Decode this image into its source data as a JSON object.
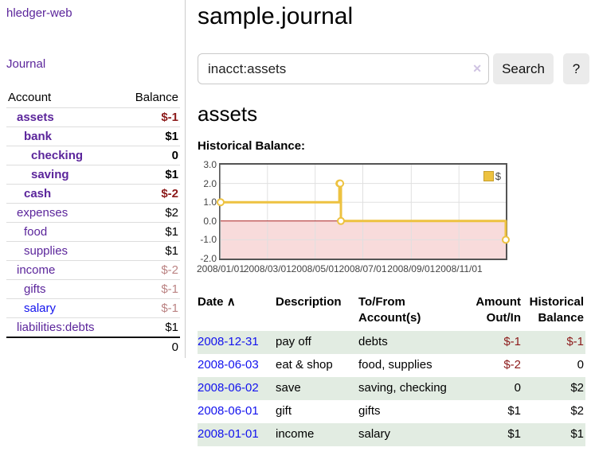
{
  "app": {
    "title": "hledger-web"
  },
  "sidebar": {
    "journal_link": "Journal",
    "accounts": {
      "headers": [
        "Account",
        "Balance"
      ],
      "rows": [
        {
          "name": "assets",
          "indent": 1,
          "bold": true,
          "link_color": "purple",
          "balance": "$-1",
          "balance_style": "neg-strong"
        },
        {
          "name": "bank",
          "indent": 2,
          "bold": true,
          "link_color": "purple",
          "balance": "$1",
          "balance_style": "normal"
        },
        {
          "name": "checking",
          "indent": 3,
          "bold": true,
          "link_color": "purple",
          "balance": "0",
          "balance_style": "normal"
        },
        {
          "name": "saving",
          "indent": 3,
          "bold": true,
          "link_color": "purple",
          "balance": "$1",
          "balance_style": "normal"
        },
        {
          "name": "cash",
          "indent": 2,
          "bold": true,
          "link_color": "purple",
          "balance": "$-2",
          "balance_style": "neg-strong"
        },
        {
          "name": "expenses",
          "indent": 1,
          "bold": false,
          "link_color": "purple",
          "balance": "$2",
          "balance_style": "normal"
        },
        {
          "name": "food",
          "indent": 2,
          "bold": false,
          "link_color": "purple",
          "balance": "$1",
          "balance_style": "normal"
        },
        {
          "name": "supplies",
          "indent": 2,
          "bold": false,
          "link_color": "purple",
          "balance": "$1",
          "balance_style": "normal"
        },
        {
          "name": "income",
          "indent": 1,
          "bold": false,
          "link_color": "purple",
          "balance": "$-2",
          "balance_style": "neg-soft"
        },
        {
          "name": "gifts",
          "indent": 2,
          "bold": false,
          "link_color": "purple",
          "balance": "$-1",
          "balance_style": "neg-soft"
        },
        {
          "name": "salary",
          "indent": 2,
          "bold": false,
          "link_color": "blue",
          "balance": "$-1",
          "balance_style": "neg-soft"
        },
        {
          "name": "liabilities:debts",
          "indent": 1,
          "bold": false,
          "link_color": "purple",
          "balance": "$1",
          "balance_style": "normal"
        }
      ],
      "total": "0"
    }
  },
  "main": {
    "title": "sample.journal",
    "search": {
      "value": "inacct:assets",
      "clear_icon": "✕",
      "button_label": "Search",
      "help_label": "?"
    },
    "account_heading": "assets",
    "section_label": "Historical Balance:"
  },
  "chart_data": {
    "type": "line",
    "step": true,
    "title": "Historical Balance",
    "series": [
      {
        "name": "$",
        "color": "#edc240",
        "points": [
          [
            "2008/01/01",
            1
          ],
          [
            "2008/06/01",
            2
          ],
          [
            "2008/06/02",
            2
          ],
          [
            "2008/06/03",
            0
          ],
          [
            "2008/12/31",
            -1
          ]
        ]
      }
    ],
    "xrange": [
      "2008/01/01",
      "2008/12/31"
    ],
    "ylim": [
      -2,
      3
    ],
    "y_ticks": [
      [
        "3.0",
        3
      ],
      [
        "2.0",
        2
      ],
      [
        "1.0",
        1
      ],
      [
        "0.0",
        0
      ],
      [
        "-1.0",
        -1
      ],
      [
        "-2.0",
        -2
      ]
    ],
    "x_ticks": [
      "2008/01/01",
      "2008/03/01",
      "2008/05/01",
      "2008/07/01",
      "2008/09/01",
      "2008/11/01"
    ],
    "grid": true,
    "legend_position": "top-right",
    "negative_region_color": "#f8dbdb",
    "zero_line_color": "#aa2222",
    "grid_color": "#e0e0e0",
    "frame_color": "#545454"
  },
  "register": {
    "headers": [
      "Date",
      "Description",
      "To/From\nAccount(s)",
      "Amount\nOut/In",
      "Historical\nBalance"
    ],
    "sort_icon": "∧",
    "rows": [
      {
        "date": "2008-12-31",
        "description": "pay off",
        "accounts": "debts",
        "amount": "$-1",
        "amount_neg": true,
        "balance": "$-1",
        "balance_neg": true,
        "highlight": true
      },
      {
        "date": "2008-06-03",
        "description": "eat & shop",
        "accounts": "food, supplies",
        "amount": "$-2",
        "amount_neg": true,
        "balance": "0",
        "balance_neg": false,
        "highlight": false
      },
      {
        "date": "2008-06-02",
        "description": "save",
        "accounts": "saving, checking",
        "amount": "0",
        "amount_neg": false,
        "balance": "$2",
        "balance_neg": false,
        "highlight": true
      },
      {
        "date": "2008-06-01",
        "description": "gift",
        "accounts": "gifts",
        "amount": "$1",
        "amount_neg": false,
        "balance": "$2",
        "balance_neg": false,
        "highlight": false
      },
      {
        "date": "2008-01-01",
        "description": "income",
        "accounts": "salary",
        "amount": "$1",
        "amount_neg": false,
        "balance": "$1",
        "balance_neg": false,
        "highlight": true
      }
    ]
  },
  "colors": {
    "link_purple": "#5b259b",
    "link_blue": "#1212ee",
    "negative_strong": "#8c1a1a",
    "negative_soft": "#bb8383",
    "row_highlight_green": "#e2ece2",
    "chart_line_gold": "#edc240"
  }
}
